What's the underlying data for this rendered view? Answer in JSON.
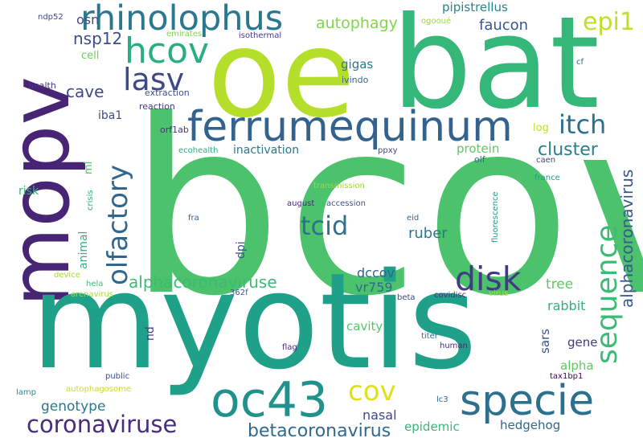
{
  "words": {
    "bcov": {
      "text": "bcov",
      "color": "#4cc26c"
    },
    "oe": {
      "text": "oe",
      "color": "#b5de2b"
    },
    "bat": {
      "text": "bat",
      "color": "#35b779"
    },
    "mopv": {
      "text": "mopv",
      "color": "#482475"
    },
    "myotis": {
      "text": "myotis",
      "color": "#1fa088"
    },
    "rhinolophus": {
      "text": "rhinolophus",
      "color": "#2a788e"
    },
    "ferrumequinum": {
      "text": "ferrumequinum",
      "color": "#33638d"
    },
    "specie": {
      "text": "specie",
      "color": "#2d708e"
    },
    "oc43": {
      "text": "oc43",
      "color": "#21918c"
    },
    "hcov": {
      "text": "hcov",
      "color": "#29af7f"
    },
    "lasv": {
      "text": "lasv",
      "color": "#3e4989"
    },
    "epi1": {
      "text": "epi1",
      "color": "#bddf26"
    },
    "itch": {
      "text": "itch",
      "color": "#2c728e"
    },
    "disk": {
      "text": "disk",
      "color": "#443a83"
    },
    "tcid": {
      "text": "tcid",
      "color": "#2c728e"
    },
    "cov": {
      "text": "cov",
      "color": "#dde318"
    },
    "coronaviruse": {
      "text": "coronaviruse",
      "color": "#472d7b"
    },
    "sequence": {
      "text": "sequence",
      "color": "#3bbb75"
    },
    "olfactory": {
      "text": "olfactory",
      "color": "#31668e"
    },
    "alphacoronaviruse": {
      "text": "alphacoronaviruse",
      "color": "#3bbb75"
    },
    "betacoronavirus": {
      "text": "betacoronavirus",
      "color": "#31688e"
    },
    "nsp12": {
      "text": "nsp12",
      "color": "#3e4c8a"
    },
    "cave": {
      "text": "cave",
      "color": "#3f4889"
    },
    "cluster": {
      "text": "cluster",
      "color": "#27808e"
    },
    "alphacoronavirus": {
      "text": "alphacoronavirus",
      "color": "#38598c"
    },
    "autophagy": {
      "text": "autophagy",
      "color": "#84d44b"
    },
    "faucon": {
      "text": "faucon",
      "color": "#39568c"
    },
    "pipistrellus": {
      "text": "pipistrellus",
      "color": "#25848e"
    },
    "ruber": {
      "text": "ruber",
      "color": "#2a788e"
    },
    "genotype": {
      "text": "genotype",
      "color": "#297a8e"
    },
    "nasal": {
      "text": "nasal",
      "color": "#3e4a89"
    },
    "dccov": {
      "text": "dccov",
      "color": "#31668e"
    },
    "vr759": {
      "text": "vr759",
      "color": "#2f6c8e"
    },
    "tree": {
      "text": "tree",
      "color": "#5ec962"
    },
    "rabbit": {
      "text": "rabbit",
      "color": "#2db27d"
    },
    "cavity": {
      "text": "cavity",
      "color": "#52c569"
    },
    "sars": {
      "text": "sars",
      "color": "#3b528b"
    },
    "gene": {
      "text": "gene",
      "color": "#453781"
    },
    "alpha": {
      "text": "alpha",
      "color": "#5ec962"
    },
    "hedgehog": {
      "text": "hedgehog",
      "color": "#31668e"
    },
    "epidemic": {
      "text": "epidemic",
      "color": "#37b878"
    },
    "protein": {
      "text": "protein",
      "color": "#5ec962"
    },
    "inactivation": {
      "text": "inactivation",
      "color": "#2a788e"
    },
    "osn": {
      "text": "osn",
      "color": "#3e4989"
    },
    "gigas": {
      "text": "gigas",
      "color": "#2a788e"
    },
    "iba1": {
      "text": "iba1",
      "color": "#3e4c8a"
    },
    "risk": {
      "text": "risk",
      "color": "#35b779"
    },
    "animal": {
      "text": "animal",
      "color": "#2db27d"
    },
    "dpi": {
      "text": "dpi",
      "color": "#39568c"
    },
    "nd": {
      "text": "nd",
      "color": "#443a83"
    },
    "ml": {
      "text": "ml",
      "color": "#52c569"
    },
    "cell": {
      "text": "cell",
      "color": "#6ccd5a"
    },
    "ndp52": {
      "text": "ndp52",
      "color": "#3e4989"
    },
    "emirates": {
      "text": "emirates",
      "color": "#7fd34e"
    },
    "isothermal": {
      "text": "isothermal",
      "color": "#443983"
    },
    "ogooué": {
      "text": "ogooué",
      "color": "#9bd93c"
    },
    "health": {
      "text": "health",
      "color": "#453781"
    },
    "extraction": {
      "text": "extraction",
      "color": "#3b528b"
    },
    "ivindo": {
      "text": "ivindo",
      "color": "#31688e"
    },
    "reaction": {
      "text": "reaction",
      "color": "#453781"
    },
    "orf1ab": {
      "text": "orf1ab",
      "color": "#46327e"
    },
    "ecohealth": {
      "text": "ecohealth",
      "color": "#29af7f"
    },
    "ppxy": {
      "text": "ppxy",
      "color": "#404688"
    },
    "log": {
      "text": "log",
      "color": "#c2df23"
    },
    "olf": {
      "text": "olf",
      "color": "#2e6e8e"
    },
    "caen": {
      "text": "caen",
      "color": "#414487"
    },
    "cf": {
      "text": "cf",
      "color": "#2e6f8e"
    },
    "france": {
      "text": "france",
      "color": "#1f9e89"
    },
    "fluorescence": {
      "text": "fluorescence",
      "color": "#1f9a8a"
    },
    "transmission": {
      "text": "transmission",
      "color": "#9dd93b"
    },
    "accession": {
      "text": "accession",
      "color": "#3b528b"
    },
    "august": {
      "text": "august",
      "color": "#482878"
    },
    "crisis": {
      "text": "crisis",
      "color": "#22a785"
    },
    "fra": {
      "text": "fra",
      "color": "#35608d"
    },
    "eid": {
      "text": "eid",
      "color": "#2f6b8e"
    },
    "device": {
      "text": "device",
      "color": "#a5db36"
    },
    "hela": {
      "text": "hela",
      "color": "#3dbc74"
    },
    "arenavirus": {
      "text": "arenavirus",
      "color": "#a8db34"
    },
    "362f": {
      "text": "362f",
      "color": "#38588c"
    },
    "beta": {
      "text": "beta",
      "color": "#3f4788"
    },
    "covidisc": {
      "text": "covidisc",
      "color": "#46307e"
    },
    "virus": {
      "text": "virus",
      "color": "#bade28"
    },
    "titer": {
      "text": "titer",
      "color": "#2c738e"
    },
    "flag": {
      "text": "flag",
      "color": "#46307e"
    },
    "human": {
      "text": "human",
      "color": "#472c7a"
    },
    "public": {
      "text": "public",
      "color": "#3c4f8a"
    },
    "lamp": {
      "text": "lamp",
      "color": "#21918c"
    },
    "autophagosome": {
      "text": "autophagosome",
      "color": "#c8e020"
    },
    "lc3": {
      "text": "lc3",
      "color": "#34618d"
    },
    "tax1bp1": {
      "text": "tax1bp1",
      "color": "#440154"
    }
  }
}
